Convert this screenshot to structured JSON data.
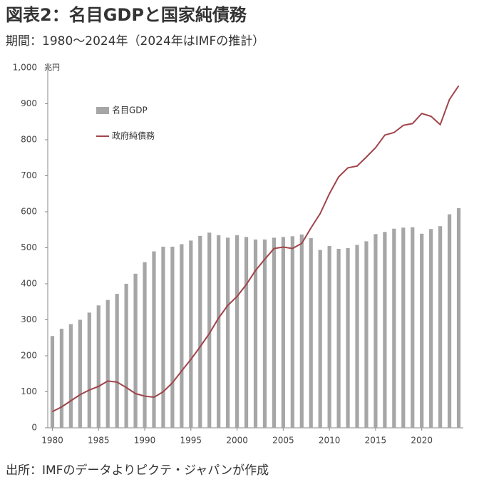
{
  "chart_data": {
    "type": "bar",
    "title": "図表2：名目GDPと国家純債務",
    "subtitle": "期間：1980～2024年（2024年はIMFの推計）",
    "unit": "兆円",
    "source": "出所：IMFのデータよりピクテ・ジャパンが作成",
    "categories": [
      "1980",
      null,
      null,
      null,
      null,
      "1985",
      null,
      null,
      null,
      null,
      "1990",
      null,
      null,
      null,
      null,
      "1995",
      null,
      null,
      null,
      null,
      "2000",
      null,
      null,
      null,
      null,
      "2005",
      null,
      null,
      null,
      null,
      "2010",
      null,
      null,
      null,
      null,
      "2015",
      null,
      null,
      null,
      null,
      "2020",
      null,
      null,
      null,
      null
    ],
    "series": [
      {
        "name": "名目GDP",
        "type": "bar",
        "color": "#a6a6a6",
        "values": [
          255,
          275,
          288,
          300,
          320,
          340,
          355,
          372,
          400,
          428,
          460,
          490,
          503,
          503,
          510,
          520,
          533,
          542,
          535,
          528,
          535,
          530,
          523,
          523,
          528,
          530,
          532,
          537,
          527,
          494,
          505,
          497,
          499,
          508,
          518,
          538,
          544,
          553,
          556,
          557,
          539,
          552,
          560,
          593,
          610
        ]
      },
      {
        "name": "政府純債務",
        "type": "line",
        "color": "#a0444a",
        "values": [
          45,
          58,
          75,
          92,
          105,
          115,
          130,
          127,
          112,
          95,
          88,
          85,
          100,
          125,
          158,
          190,
          225,
          262,
          305,
          340,
          365,
          398,
          437,
          468,
          498,
          502,
          498,
          512,
          555,
          595,
          650,
          697,
          722,
          727,
          752,
          778,
          813,
          820,
          840,
          845,
          873,
          865,
          842,
          912,
          950
        ]
      }
    ],
    "ylim": [
      0,
      1000
    ],
    "yticks": [
      0,
      100,
      200,
      300,
      400,
      500,
      600,
      700,
      800,
      900,
      {
        "value": 1000,
        "label": "1,000"
      }
    ],
    "grid": false
  }
}
